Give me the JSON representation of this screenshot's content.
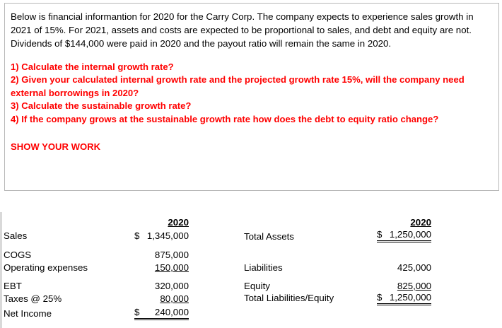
{
  "intro": "Below is financial informantion for 2020 for the Carry Corp.  The company expects to experience sales growth in 2021 of 15%.  For 2021, assets and costs are expected to be proportional to sales, and debt and equity are not.  Dividends of $144,000 were paid in 2020 and the payout ratio will remain the same in 2020.",
  "questions": [
    "1) Calculate the internal growth rate?",
    "2) Given your calculated internal growth rate and the projected growth rate 15%, will the company need external borrowings in 2020?",
    "3) Calculate the sustainable growth rate?",
    "4) If the company grows at the sustainable growth rate how does the debt to equity ratio change?"
  ],
  "show_work": "SHOW YOUR WORK",
  "income": {
    "year": "2020",
    "rows": [
      {
        "label": "Sales",
        "symbol": "$",
        "value": "1,345,000"
      },
      {
        "label": "COGS",
        "value": "875,000"
      },
      {
        "label": "Operating expenses",
        "value": "150,000"
      },
      {
        "label": "EBT",
        "value": "320,000"
      },
      {
        "label": "Taxes @ 25%",
        "value": "80,000"
      },
      {
        "label": "Net Income",
        "symbol": "$",
        "value": "240,000"
      }
    ]
  },
  "balance": {
    "year": "2020",
    "rows": [
      {
        "label": "Total Assets",
        "symbol": "$",
        "value": "1,250,000"
      },
      {
        "label": "Liabilities",
        "value": "425,000"
      },
      {
        "label": "Equity",
        "value": "825,000"
      },
      {
        "label": "Total Liabilities/Equity",
        "symbol": "$",
        "value": "1,250,000"
      }
    ]
  }
}
